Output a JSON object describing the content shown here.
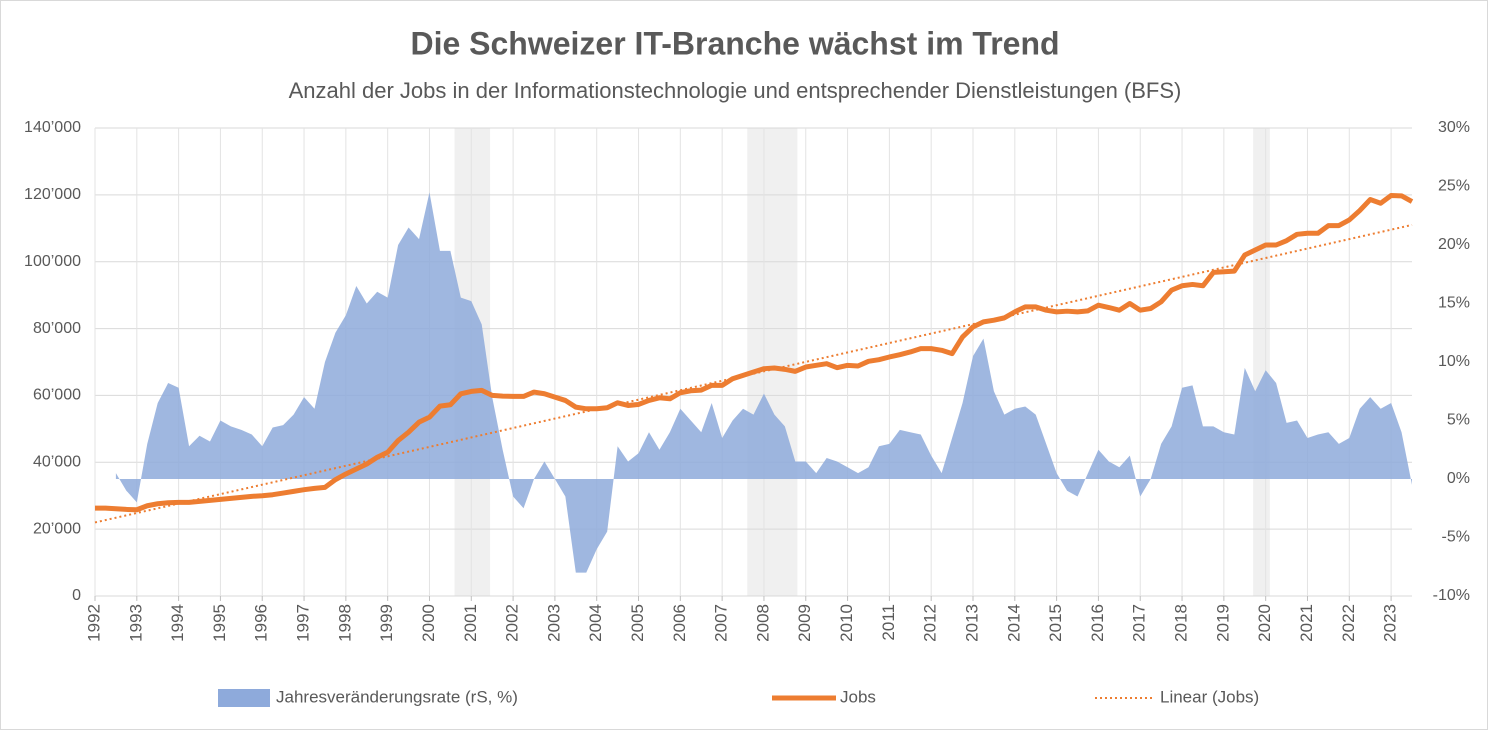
{
  "chart_data": {
    "type": "area_line",
    "title": "Die Schweizer IT-Branche wächst im Trend",
    "subtitle": "Anzahl der Jobs in der Informationstechnologie und entsprechender Dienstleistungen (BFS)",
    "x": [
      1992,
      1992.25,
      1992.5,
      1992.75,
      1993,
      1993.25,
      1993.5,
      1993.75,
      1994,
      1994.25,
      1994.5,
      1994.75,
      1995,
      1995.25,
      1995.5,
      1995.75,
      1996,
      1996.25,
      1996.5,
      1996.75,
      1997,
      1997.25,
      1997.5,
      1997.75,
      1998,
      1998.25,
      1998.5,
      1998.75,
      1999,
      1999.25,
      1999.5,
      1999.75,
      2000,
      2000.25,
      2000.5,
      2000.75,
      2001,
      2001.25,
      2001.5,
      2001.75,
      2002,
      2002.25,
      2002.5,
      2002.75,
      2003,
      2003.25,
      2003.5,
      2003.75,
      2004,
      2004.25,
      2004.5,
      2004.75,
      2005,
      2005.25,
      2005.5,
      2005.75,
      2006,
      2006.25,
      2006.5,
      2006.75,
      2007,
      2007.25,
      2007.5,
      2007.75,
      2008,
      2008.25,
      2008.5,
      2008.75,
      2009,
      2009.25,
      2009.5,
      2009.75,
      2010,
      2010.25,
      2010.5,
      2010.75,
      2011,
      2011.25,
      2011.5,
      2011.75,
      2012,
      2012.25,
      2012.5,
      2012.75,
      2013,
      2013.25,
      2013.5,
      2013.75,
      2014,
      2014.25,
      2014.5,
      2014.75,
      2015,
      2015.25,
      2015.5,
      2015.75,
      2016,
      2016.25,
      2016.5,
      2016.75,
      2017,
      2017.25,
      2017.5,
      2017.75,
      2018,
      2018.25,
      2018.5,
      2018.75,
      2019,
      2019.25,
      2019.5,
      2019.75,
      2020,
      2020.25,
      2020.5,
      2020.75,
      2021,
      2021.25,
      2021.5,
      2021.75,
      2022,
      2022.25,
      2022.5,
      2022.75,
      2023,
      2023.25,
      2023.5
    ],
    "series": [
      {
        "name": "Jahresveränderungsrate (rS, %)",
        "kind": "area",
        "axis": "y2",
        "color": "#8eaadb",
        "values": [
          null,
          null,
          0.5,
          -1,
          -2,
          3,
          6.5,
          8.2,
          7.8,
          2.8,
          3.7,
          3.2,
          5,
          4.5,
          4.2,
          3.8,
          2.8,
          4.4,
          4.6,
          5.5,
          7,
          6,
          10,
          12.5,
          14,
          16.5,
          15,
          16,
          15.5,
          20,
          21.5,
          20.5,
          24.5,
          19.5,
          19.5,
          15.5,
          15.2,
          13.2,
          7,
          2.5,
          -1.5,
          -2.5,
          0,
          1.5,
          0,
          -1.5,
          -8,
          -8,
          -6,
          -4.5,
          2.8,
          1.5,
          2.2,
          4,
          2.5,
          4,
          6,
          5,
          4,
          6.5,
          3.5,
          5,
          6,
          5.5,
          7.3,
          5.5,
          4.5,
          1.5,
          1.5,
          0.5,
          1.8,
          1.5,
          1,
          0.5,
          1,
          2.8,
          3,
          4.2,
          4,
          3.8,
          2,
          0.5,
          3.5,
          6.5,
          10.5,
          12,
          7.5,
          5.5,
          6,
          6.2,
          5.5,
          3,
          0.5,
          -1,
          -1.5,
          0.5,
          2.5,
          1.5,
          1,
          2,
          -1.5,
          0,
          3,
          4.5,
          7.8,
          8,
          4.5,
          4.5,
          4,
          3.8,
          9.5,
          7.5,
          9.3,
          8.2,
          4.8,
          5,
          3.5,
          3.8,
          4,
          3,
          3.5,
          6,
          7,
          6,
          6.5,
          4,
          -0.5
        ]
      },
      {
        "name": "Jobs",
        "kind": "line",
        "color": "#ed7d31",
        "values": [
          26300,
          26300,
          26100,
          25900,
          25800,
          27000,
          27600,
          27900,
          28000,
          28000,
          28300,
          28600,
          28900,
          29200,
          29500,
          29800,
          30000,
          30300,
          30800,
          31300,
          31800,
          32200,
          32500,
          34800,
          36500,
          38000,
          39500,
          41500,
          43000,
          46500,
          49000,
          52000,
          53500,
          56800,
          57200,
          60500,
          61200,
          61500,
          60000,
          59800,
          59700,
          59700,
          61000,
          60500,
          59500,
          58500,
          56500,
          56000,
          56000,
          56300,
          57800,
          57000,
          57300,
          58500,
          59300,
          59000,
          60800,
          61400,
          61600,
          63000,
          63000,
          65000,
          66000,
          67000,
          68000,
          68200,
          67800,
          67200,
          68500,
          69000,
          69500,
          68300,
          69000,
          68800,
          70200,
          70700,
          71500,
          72200,
          73000,
          74000,
          74000,
          73500,
          72500,
          77500,
          80500,
          82000,
          82500,
          83200,
          85000,
          86500,
          86500,
          85500,
          85000,
          85200,
          85000,
          85300,
          87000,
          86300,
          85500,
          87500,
          85500,
          86000,
          88000,
          91500,
          92800,
          93200,
          92800,
          96800,
          97000,
          97200,
          102000,
          103500,
          105000,
          105000,
          106300,
          108200,
          108500,
          108500,
          110800,
          110800,
          112500,
          115300,
          118600,
          117500,
          119800,
          119700,
          118000
        ]
      }
    ],
    "trend": {
      "name": "Linear (Jobs)",
      "color": "#ed7d31",
      "x": [
        1992,
        2023.5
      ],
      "values": [
        22000,
        111000
      ]
    },
    "shaded_periods": [
      [
        2000.6,
        2001.45
      ],
      [
        2007.6,
        2008.8
      ],
      [
        2019.7,
        2020.1
      ]
    ],
    "xlim": [
      1992,
      2023.5
    ],
    "xticks": [
      1992,
      1993,
      1994,
      1995,
      1996,
      1997,
      1998,
      1999,
      2000,
      2001,
      2002,
      2003,
      2004,
      2005,
      2006,
      2007,
      2008,
      2009,
      2010,
      2011,
      2012,
      2013,
      2014,
      2015,
      2016,
      2017,
      2018,
      2019,
      2020,
      2021,
      2022,
      2023
    ],
    "ylim": [
      0,
      140000
    ],
    "yticks": [
      0,
      {
        "value": 20000,
        "label": "20’000"
      },
      {
        "value": 40000,
        "label": "40’000"
      },
      {
        "value": 60000,
        "label": "60’000"
      },
      {
        "value": 80000,
        "label": "80’000"
      },
      {
        "value": 100000,
        "label": "100’000"
      },
      {
        "value": 120000,
        "label": "120’000"
      },
      {
        "value": 140000,
        "label": "140’000"
      }
    ],
    "y2lim": [
      -10,
      30
    ],
    "y2ticks": [
      {
        "value": -10,
        "label": "-10%"
      },
      {
        "value": -5,
        "label": "-5%"
      },
      {
        "value": 0,
        "label": "0%"
      },
      {
        "value": 5,
        "label": "5%"
      },
      {
        "value": 10,
        "label": "10%"
      },
      {
        "value": 15,
        "label": "15%"
      },
      {
        "value": 20,
        "label": "20%"
      },
      {
        "value": 25,
        "label": "25%"
      },
      {
        "value": 30,
        "label": "30%"
      }
    ],
    "grid": true,
    "legend": "bottom"
  }
}
